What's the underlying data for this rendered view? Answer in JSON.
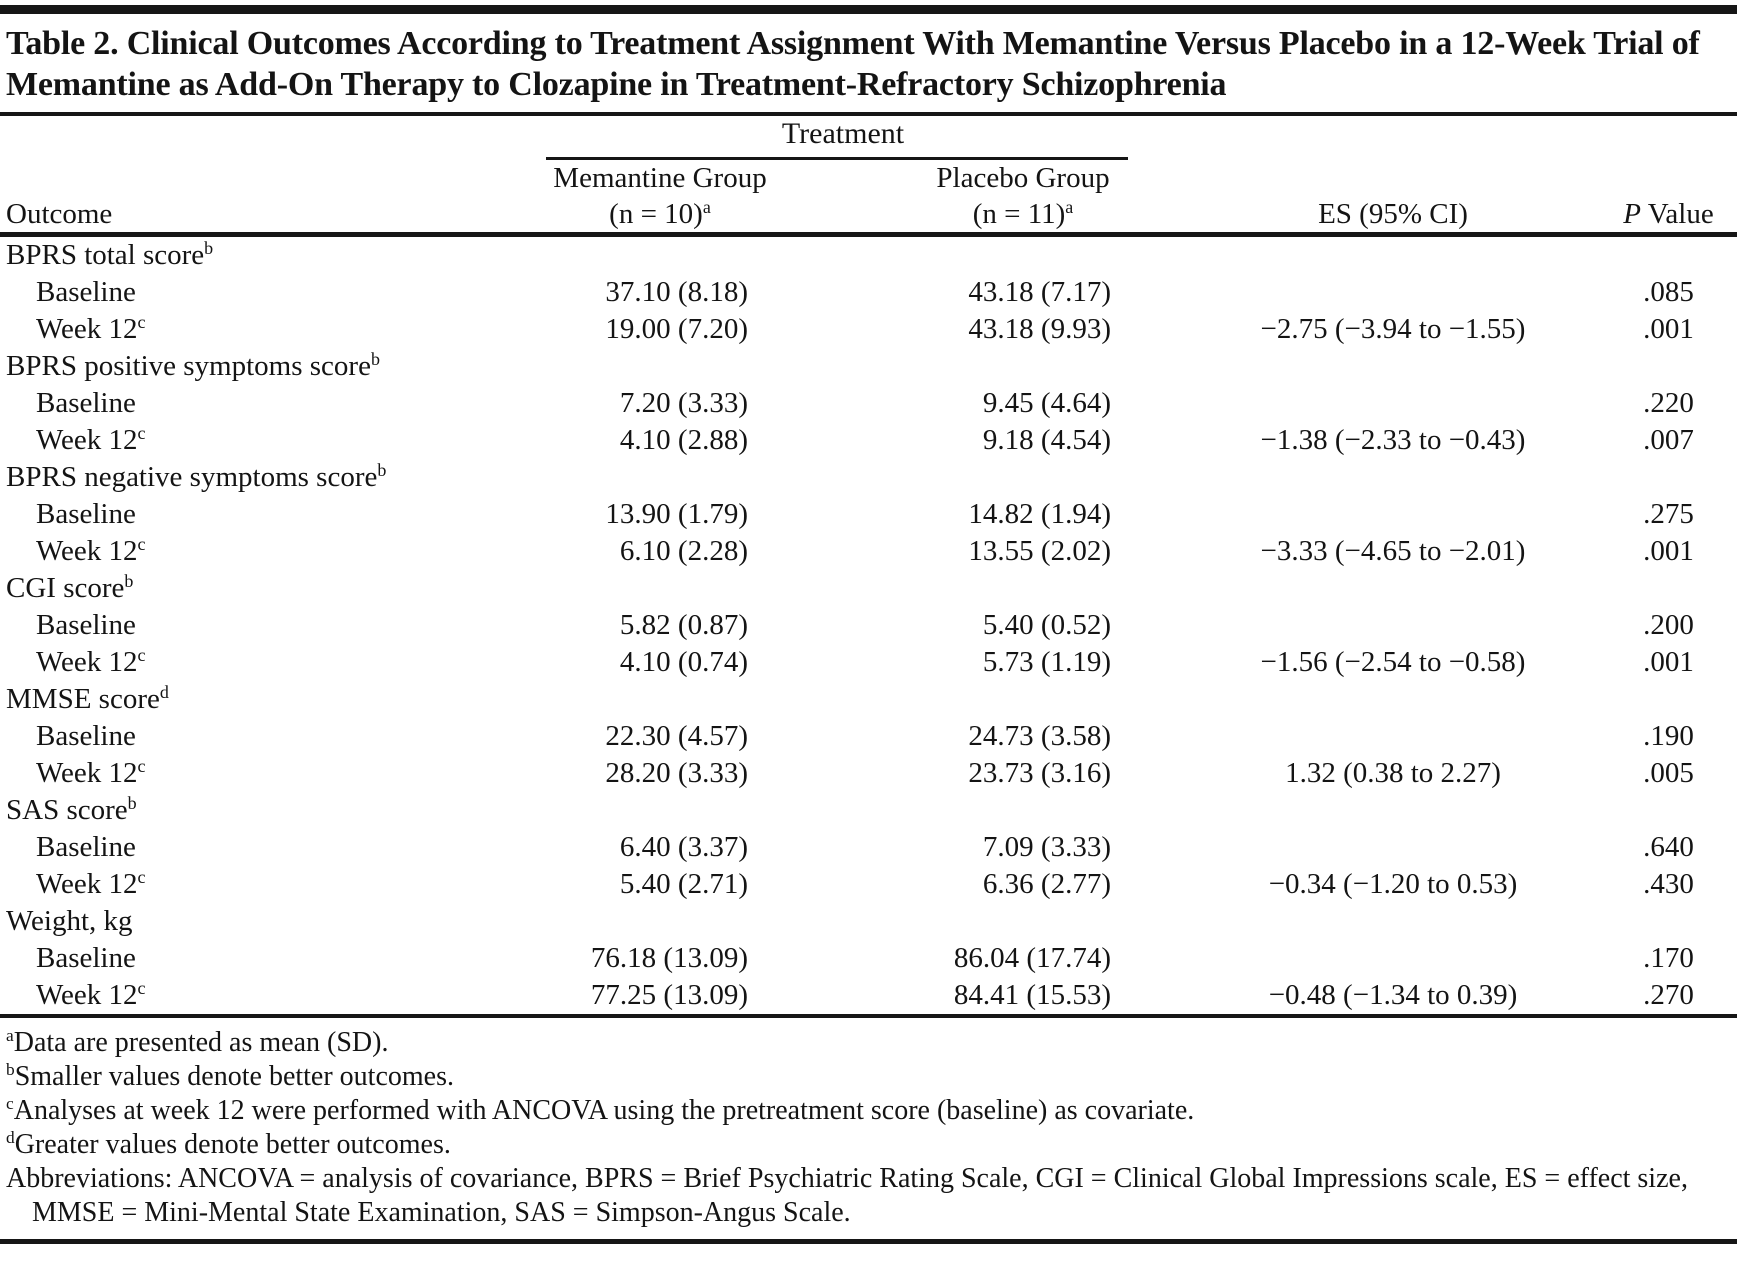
{
  "colors": {
    "text": "#141414",
    "rule": "#161616",
    "background": "#ffffff"
  },
  "table": {
    "title": "Table 2. Clinical Outcomes According to Treatment Assignment With Memantine Versus Placebo in a 12-Week Trial of Memantine as Add-On Therapy to Clozapine in Treatment-Refractory Schizophrenia",
    "spanner_label": "Treatment",
    "columns": {
      "outcome": "Outcome",
      "memantine_group": "Memantine Group",
      "memantine_n": "(n = 10)",
      "memantine_n_sup": "a",
      "placebo_group": "Placebo Group",
      "placebo_n": "(n = 11)",
      "placebo_n_sup": "a",
      "es": "ES (95% CI)",
      "p_italic": "P",
      "p_rest": " Value"
    },
    "rows": [
      {
        "section": true,
        "label": "BPRS total score",
        "sup": "b"
      },
      {
        "section": false,
        "label": "Baseline",
        "mem": "37.10 (8.18)",
        "pla": "43.18 (7.17)",
        "es": "",
        "p": ".085"
      },
      {
        "section": false,
        "label": "Week 12",
        "sup": "c",
        "mem": "19.00 (7.20)",
        "pla": "43.18 (9.93)",
        "es": "−2.75 (−3.94 to −1.55)",
        "p": ".001"
      },
      {
        "section": true,
        "label": "BPRS positive symptoms score",
        "sup": "b"
      },
      {
        "section": false,
        "label": "Baseline",
        "mem": "7.20 (3.33)",
        "pla": "9.45 (4.64)",
        "es": "",
        "p": ".220"
      },
      {
        "section": false,
        "label": "Week 12",
        "sup": "c",
        "mem": "4.10 (2.88)",
        "pla": "9.18 (4.54)",
        "es": "−1.38 (−2.33 to −0.43)",
        "p": ".007"
      },
      {
        "section": true,
        "label": "BPRS negative symptoms score",
        "sup": "b"
      },
      {
        "section": false,
        "label": "Baseline",
        "mem": "13.90 (1.79)",
        "pla": "14.82 (1.94)",
        "es": "",
        "p": ".275"
      },
      {
        "section": false,
        "label": "Week 12",
        "sup": "c",
        "mem": "6.10 (2.28)",
        "pla": "13.55 (2.02)",
        "es": "−3.33 (−4.65 to −2.01)",
        "p": ".001"
      },
      {
        "section": true,
        "label": "CGI score",
        "sup": "b"
      },
      {
        "section": false,
        "label": "Baseline",
        "mem": "5.82 (0.87)",
        "pla": "5.40 (0.52)",
        "es": "",
        "p": ".200"
      },
      {
        "section": false,
        "label": "Week 12",
        "sup": "c",
        "mem": "4.10 (0.74)",
        "pla": "5.73 (1.19)",
        "es": "−1.56 (−2.54 to −0.58)",
        "p": ".001"
      },
      {
        "section": true,
        "label": "MMSE score",
        "sup": "d"
      },
      {
        "section": false,
        "label": "Baseline",
        "mem": "22.30 (4.57)",
        "pla": "24.73 (3.58)",
        "es": "",
        "p": ".190"
      },
      {
        "section": false,
        "label": "Week 12",
        "sup": "c",
        "mem": "28.20 (3.33)",
        "pla": "23.73 (3.16)",
        "es": "1.32 (0.38 to 2.27)",
        "p": ".005"
      },
      {
        "section": true,
        "label": "SAS score",
        "sup": "b"
      },
      {
        "section": false,
        "label": "Baseline",
        "mem": "6.40 (3.37)",
        "pla": "7.09 (3.33)",
        "es": "",
        "p": ".640"
      },
      {
        "section": false,
        "label": "Week 12",
        "sup": "c",
        "mem": "5.40 (2.71)",
        "pla": "6.36 (2.77)",
        "es": "−0.34 (−1.20 to 0.53)",
        "p": ".430"
      },
      {
        "section": true,
        "label": "Weight, kg"
      },
      {
        "section": false,
        "label": "Baseline",
        "mem": "76.18 (13.09)",
        "pla": "86.04 (17.74)",
        "es": "",
        "p": ".170"
      },
      {
        "section": false,
        "label": "Week 12",
        "sup": "c",
        "mem": "77.25 (13.09)",
        "pla": "84.41 (15.53)",
        "es": "−0.48 (−1.34 to 0.39)",
        "p": ".270"
      }
    ],
    "footnotes": [
      {
        "marker": "a",
        "text": "Data are presented as mean (SD)."
      },
      {
        "marker": "b",
        "text": "Smaller values denote better outcomes."
      },
      {
        "marker": "c",
        "text": "Analyses at week 12 were performed with ANCOVA using the pretreatment score (baseline) as covariate."
      },
      {
        "marker": "d",
        "text": "Greater values denote better outcomes."
      },
      {
        "marker": "",
        "text": "Abbreviations: ANCOVA = analysis of covariance, BPRS = Brief Psychiatric Rating Scale, CGI = Clinical Global Impressions scale, ES = effect size, MMSE = Mini-Mental State Examination, SAS = Simpson-Angus Scale."
      }
    ]
  }
}
